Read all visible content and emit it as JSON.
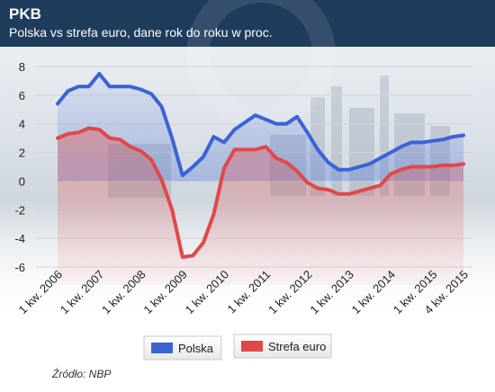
{
  "header": {
    "title": "PKB",
    "subtitle": "Polska vs strefa euro, dane rok do roku w proc."
  },
  "source": "Źródło: NBP",
  "colors": {
    "header_bg": "#1f3c5c",
    "polska": "#3b63d6",
    "strefa": "#e04848",
    "grid": "#d4d4d4"
  },
  "chart_data": {
    "type": "line",
    "title": "PKB",
    "subtitle": "Polska vs strefa euro, dane rok do roku w proc.",
    "xlabel": "",
    "ylabel": "",
    "x": [
      "1 kw. 2006",
      "2 kw. 2006",
      "3 kw. 2006",
      "4 kw. 2006",
      "1 kw. 2007",
      "2 kw. 2007",
      "3 kw. 2007",
      "4 kw. 2007",
      "1 kw. 2008",
      "2 kw. 2008",
      "3 kw. 2008",
      "4 kw. 2008",
      "1 kw. 2009",
      "2 kw. 2009",
      "3 kw. 2009",
      "4 kw. 2009",
      "1 kw. 2010",
      "2 kw. 2010",
      "3 kw. 2010",
      "4 kw. 2010",
      "1 kw. 2011",
      "2 kw. 2011",
      "3 kw. 2011",
      "4 kw. 2011",
      "1 kw. 2012",
      "2 kw. 2012",
      "3 kw. 2012",
      "4 kw. 2012",
      "1 kw. 2013",
      "2 kw. 2013",
      "3 kw. 2013",
      "4 kw. 2013",
      "1 kw. 2014",
      "2 kw. 2014",
      "3 kw. 2014",
      "4 kw. 2014",
      "1 kw. 2015",
      "2 kw. 2015",
      "3 kw. 2015",
      "4 kw. 2015"
    ],
    "tick_labels": [
      "1 kw. 2006",
      "1 kw. 2007",
      "1 kw. 2008",
      "1 kw. 2009",
      "1 kw. 2010",
      "1 kw. 2011",
      "1 kw. 2012",
      "1 kw. 2013",
      "1 kw. 2014",
      "1 kw. 2015",
      "4 kw. 2015"
    ],
    "tick_index": [
      0,
      4,
      8,
      12,
      16,
      20,
      24,
      28,
      32,
      36,
      39
    ],
    "ylim": [
      -6,
      8
    ],
    "yticks": [
      8,
      6,
      4,
      2,
      0,
      -2,
      -4,
      -6
    ],
    "grid": "horizontal",
    "legend_position": "bottom",
    "series": [
      {
        "name": "Polska",
        "color": "#3b63d6",
        "values": [
          5.4,
          6.3,
          6.6,
          6.6,
          7.5,
          6.6,
          6.6,
          6.6,
          6.4,
          6.1,
          5.2,
          3.0,
          0.4,
          1.0,
          1.7,
          3.1,
          2.7,
          3.6,
          4.1,
          4.6,
          4.3,
          4.0,
          4.0,
          4.5,
          3.4,
          2.2,
          1.3,
          0.8,
          0.8,
          1.0,
          1.2,
          1.6,
          2.0,
          2.4,
          2.7,
          2.7,
          2.8,
          2.9,
          3.1,
          3.2
        ]
      },
      {
        "name": "Strefa euro",
        "color": "#e04848",
        "values": [
          3.0,
          3.3,
          3.4,
          3.7,
          3.6,
          3.0,
          2.9,
          2.4,
          2.1,
          1.5,
          0.1,
          -2.0,
          -5.3,
          -5.2,
          -4.3,
          -2.3,
          0.9,
          2.2,
          2.2,
          2.2,
          2.4,
          1.6,
          1.3,
          0.7,
          -0.1,
          -0.5,
          -0.6,
          -0.9,
          -0.9,
          -0.7,
          -0.5,
          -0.3,
          0.5,
          0.8,
          1.0,
          1.0,
          1.0,
          1.1,
          1.1,
          1.2
        ]
      }
    ]
  }
}
